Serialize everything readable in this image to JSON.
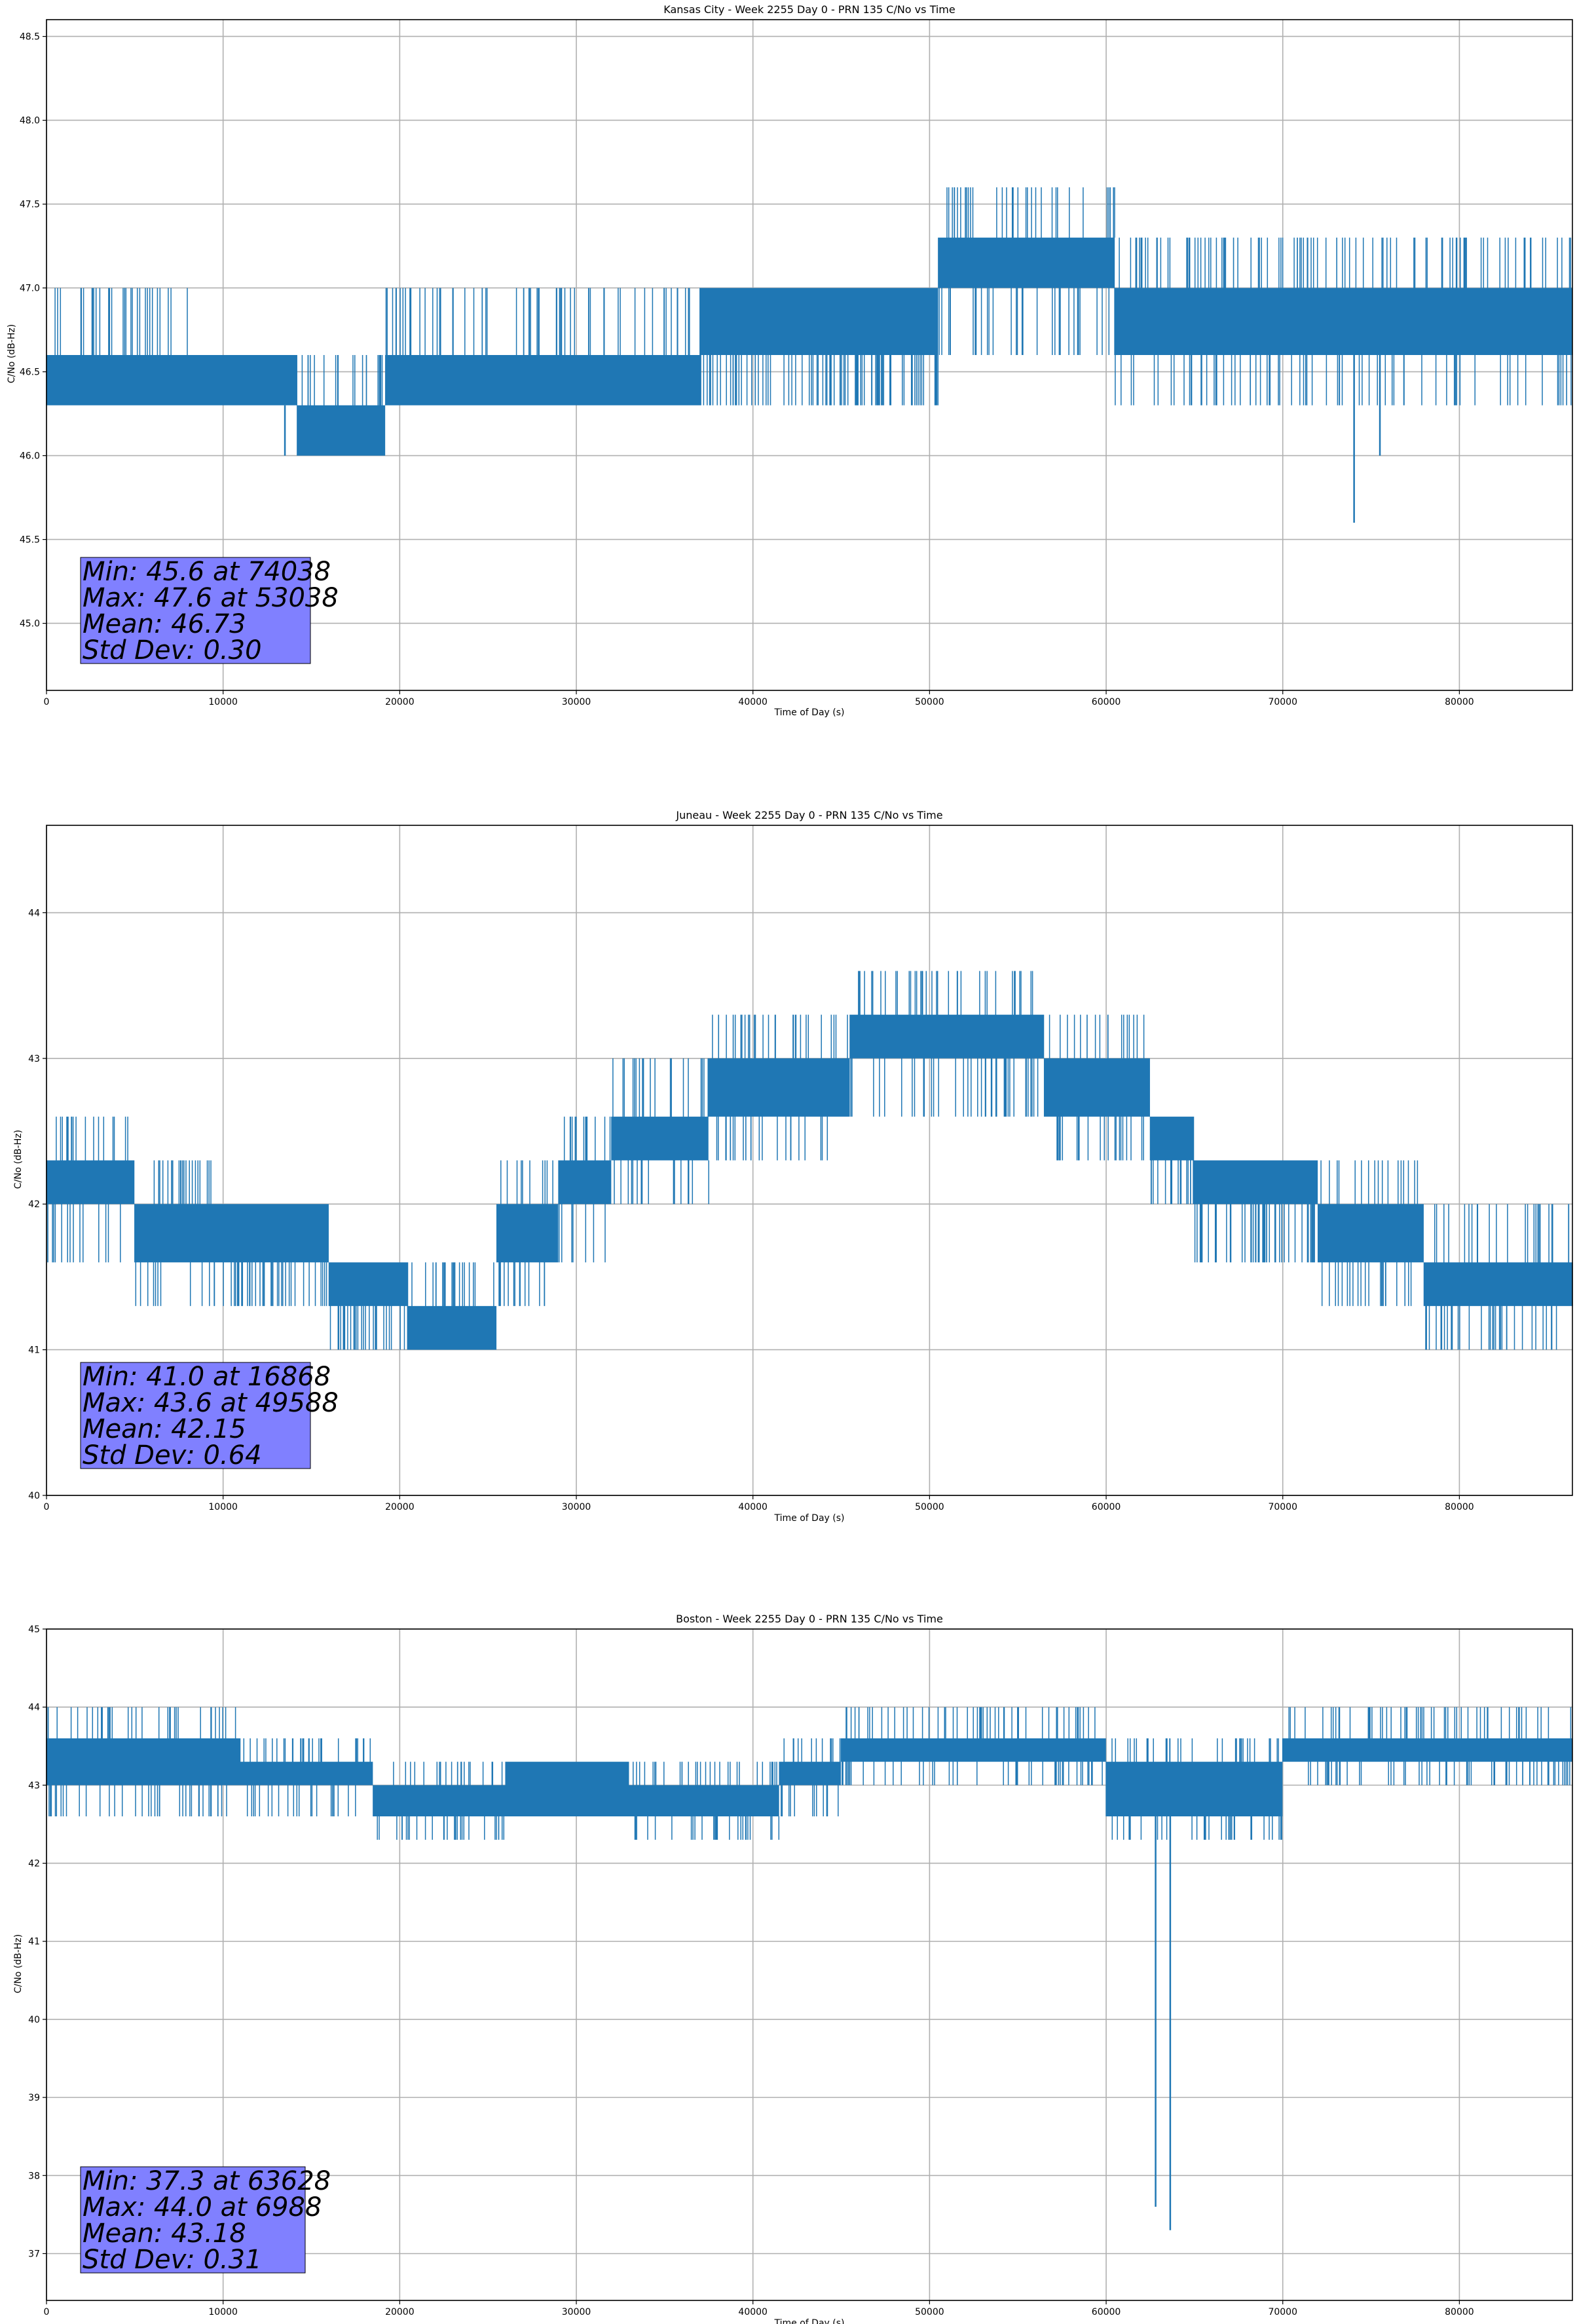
{
  "chart_data": [
    {
      "type": "line",
      "title": "Kansas City - Week 2255 Day 0 - PRN 135 C/No vs Time",
      "xlabel": "Time of Day (s)",
      "ylabel": "C/No (dB-Hz)",
      "xlim": [
        0,
        86400
      ],
      "ylim": [
        44.6,
        48.6
      ],
      "xticks": [
        0,
        10000,
        20000,
        30000,
        40000,
        50000,
        60000,
        70000,
        80000
      ],
      "yticks": [
        45.0,
        45.5,
        46.0,
        46.5,
        47.0,
        47.5,
        48.0,
        48.5
      ],
      "ytick_labels": [
        "45.0",
        "45.5",
        "46.0",
        "46.5",
        "47.0",
        "47.5",
        "48.0",
        "48.5"
      ],
      "grid": true,
      "color": "#1f77b4",
      "stats_box_color": "#8080ff",
      "series": [
        {
          "name": "PRN 135 C/No",
          "segments": [
            {
              "x": [
                0,
                8000
              ],
              "low": 46.3,
              "high": 46.6,
              "spike_up": 47.0,
              "spike_down": 46.3
            },
            {
              "x": [
                8000,
                14200
              ],
              "low": 46.3,
              "high": 46.6,
              "spike_up": 46.6,
              "spike_down": 46.3
            },
            {
              "x": [
                14200,
                19200
              ],
              "low": 46.0,
              "high": 46.3,
              "spike_up": 46.6,
              "spike_down": 46.0
            },
            {
              "x": [
                19200,
                37000
              ],
              "low": 46.3,
              "high": 46.6,
              "spike_up": 47.0,
              "spike_down": 46.3
            },
            {
              "x": [
                37000,
                50500
              ],
              "low": 46.6,
              "high": 47.0,
              "spike_up": 47.0,
              "spike_down": 46.3
            },
            {
              "x": [
                50500,
                60500
              ],
              "low": 47.0,
              "high": 47.3,
              "spike_up": 47.6,
              "spike_down": 46.6
            },
            {
              "x": [
                60500,
                86400
              ],
              "low": 46.6,
              "high": 47.0,
              "spike_up": 47.3,
              "spike_down": 46.3
            }
          ],
          "spikes": [
            {
              "x": 74038,
              "y": 45.6
            },
            {
              "x": 13500,
              "y": 46.0
            },
            {
              "x": 75500,
              "y": 46.0
            }
          ]
        }
      ],
      "stats": [
        "Min: 45.6 at 74038",
        "Max: 47.6 at 53038",
        "Mean: 46.73",
        "Std Dev: 0.30"
      ]
    },
    {
      "type": "line",
      "title": "Juneau - Week 2255 Day 0 - PRN 135 C/No vs Time",
      "xlabel": "Time of Day (s)",
      "ylabel": "C/No (dB-Hz)",
      "xlim": [
        0,
        86400
      ],
      "ylim": [
        40.0,
        44.6
      ],
      "xticks": [
        0,
        10000,
        20000,
        30000,
        40000,
        50000,
        60000,
        70000,
        80000
      ],
      "yticks": [
        40,
        41,
        42,
        43,
        44
      ],
      "ytick_labels": [
        "40",
        "41",
        "42",
        "43",
        "44"
      ],
      "grid": true,
      "color": "#1f77b4",
      "stats_box_color": "#8080ff",
      "series": [
        {
          "name": "PRN 135 C/No",
          "segments": [
            {
              "x": [
                0,
                5000
              ],
              "low": 42.0,
              "high": 42.3,
              "spike_up": 42.6,
              "spike_down": 41.6
            },
            {
              "x": [
                5000,
                10000
              ],
              "low": 41.6,
              "high": 42.0,
              "spike_up": 42.3,
              "spike_down": 41.3
            },
            {
              "x": [
                10000,
                16000
              ],
              "low": 41.6,
              "high": 42.0,
              "spike_up": 42.0,
              "spike_down": 41.3
            },
            {
              "x": [
                16000,
                20500
              ],
              "low": 41.3,
              "high": 41.6,
              "spike_up": 41.6,
              "spike_down": 41.0
            },
            {
              "x": [
                20500,
                25500
              ],
              "low": 41.0,
              "high": 41.3,
              "spike_up": 41.6,
              "spike_down": 41.0
            },
            {
              "x": [
                25500,
                29000
              ],
              "low": 41.6,
              "high": 42.0,
              "spike_up": 42.3,
              "spike_down": 41.3
            },
            {
              "x": [
                29000,
                32000
              ],
              "low": 42.0,
              "high": 42.3,
              "spike_up": 42.6,
              "spike_down": 41.6
            },
            {
              "x": [
                32000,
                37500
              ],
              "low": 42.3,
              "high": 42.6,
              "spike_up": 43.0,
              "spike_down": 42.0
            },
            {
              "x": [
                37500,
                45500
              ],
              "low": 42.6,
              "high": 43.0,
              "spike_up": 43.3,
              "spike_down": 42.3
            },
            {
              "x": [
                45500,
                56500
              ],
              "low": 43.0,
              "high": 43.3,
              "spike_up": 43.6,
              "spike_down": 42.6
            },
            {
              "x": [
                56500,
                62500
              ],
              "low": 42.6,
              "high": 43.0,
              "spike_up": 43.3,
              "spike_down": 42.3
            },
            {
              "x": [
                62500,
                65000
              ],
              "low": 42.3,
              "high": 42.6,
              "spike_up": 42.6,
              "spike_down": 42.0
            },
            {
              "x": [
                65000,
                72000
              ],
              "low": 42.0,
              "high": 42.3,
              "spike_up": 42.3,
              "spike_down": 41.6
            },
            {
              "x": [
                72000,
                78000
              ],
              "low": 41.6,
              "high": 42.0,
              "spike_up": 42.3,
              "spike_down": 41.3
            },
            {
              "x": [
                78000,
                86400
              ],
              "low": 41.3,
              "high": 41.6,
              "spike_up": 42.0,
              "spike_down": 41.0
            }
          ],
          "spikes": [
            {
              "x": 49588,
              "y": 43.6
            },
            {
              "x": 16868,
              "y": 41.0
            }
          ]
        }
      ],
      "stats": [
        "Min: 41.0 at 16868",
        "Max: 43.6 at 49588",
        "Mean: 42.15",
        "Std Dev: 0.64"
      ]
    },
    {
      "type": "line",
      "title": "Boston - Week 2255 Day 0 - PRN 135 C/No vs Time",
      "xlabel": "Time of Day (s)",
      "ylabel": "C/No (dB-Hz)",
      "xlim": [
        0,
        86400
      ],
      "ylim": [
        36.4,
        45.0
      ],
      "xticks": [
        0,
        10000,
        20000,
        30000,
        40000,
        50000,
        60000,
        70000,
        80000
      ],
      "yticks": [
        37,
        38,
        39,
        40,
        41,
        42,
        43,
        44,
        45
      ],
      "ytick_labels": [
        "37",
        "38",
        "39",
        "40",
        "41",
        "42",
        "43",
        "44",
        "45"
      ],
      "grid": true,
      "color": "#1f77b4",
      "stats_box_color": "#8080ff",
      "series": [
        {
          "name": "PRN 135 C/No",
          "segments": [
            {
              "x": [
                0,
                11000
              ],
              "low": 43.0,
              "high": 43.6,
              "spike_up": 44.0,
              "spike_down": 42.6
            },
            {
              "x": [
                11000,
                18500
              ],
              "low": 43.0,
              "high": 43.3,
              "spike_up": 43.6,
              "spike_down": 42.6
            },
            {
              "x": [
                18500,
                26000
              ],
              "low": 42.6,
              "high": 43.0,
              "spike_up": 43.3,
              "spike_down": 42.3
            },
            {
              "x": [
                26000,
                33000
              ],
              "low": 42.6,
              "high": 43.3,
              "spike_up": 43.3,
              "spike_down": 42.6
            },
            {
              "x": [
                33000,
                41500
              ],
              "low": 42.6,
              "high": 43.0,
              "spike_up": 43.3,
              "spike_down": 42.3
            },
            {
              "x": [
                41500,
                45000
              ],
              "low": 43.0,
              "high": 43.3,
              "spike_up": 43.6,
              "spike_down": 42.6
            },
            {
              "x": [
                45000,
                60000
              ],
              "low": 43.3,
              "high": 43.6,
              "spike_up": 44.0,
              "spike_down": 43.0
            },
            {
              "x": [
                60000,
                70000
              ],
              "low": 42.6,
              "high": 43.3,
              "spike_up": 43.6,
              "spike_down": 42.3
            },
            {
              "x": [
                70000,
                86400
              ],
              "low": 43.3,
              "high": 43.6,
              "spike_up": 44.0,
              "spike_down": 43.0
            }
          ],
          "spikes": [
            {
              "x": 62800,
              "y": 37.6
            },
            {
              "x": 63628,
              "y": 37.3
            },
            {
              "x": 6988,
              "y": 44.0
            }
          ]
        }
      ],
      "stats": [
        "Min: 37.3 at 63628",
        "Max: 44.0 at 6988",
        "Mean: 43.18",
        "Std Dev: 0.31"
      ]
    }
  ]
}
